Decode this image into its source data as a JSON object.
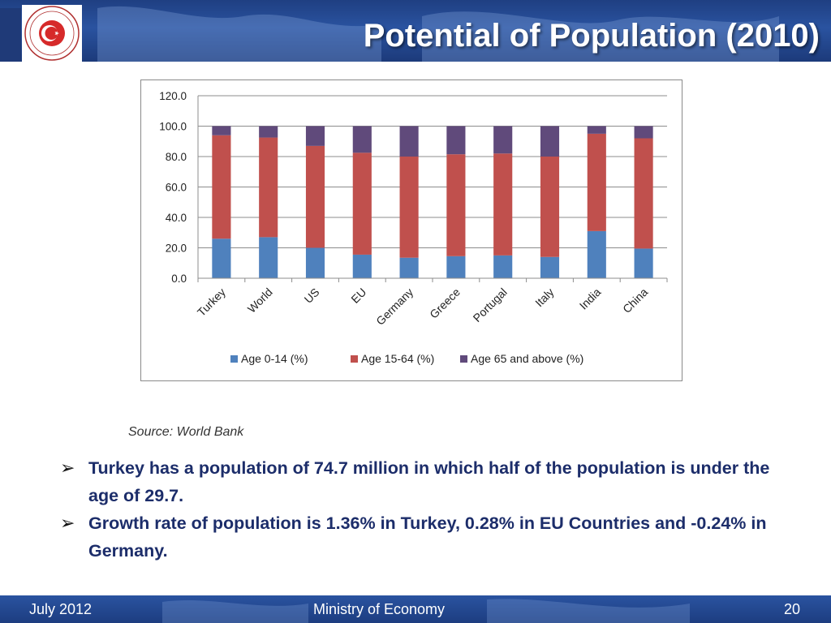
{
  "slide": {
    "title": "Potential of Population (2010)",
    "source": "Source: World Bank",
    "logo_text": "REPUBLIC OF TURKEY MINISTRY OF ECONOMY"
  },
  "bullets": [
    "Turkey has a population of 74.7 million in which half of the population is under the age of 29.7.",
    "Growth rate of population is 1.36% in Turkey, 0.28% in EU Countries and -0.24% in Germany."
  ],
  "footer": {
    "date": "July 2012",
    "org": "Ministry of Economy",
    "page": "20"
  },
  "colors": {
    "header_blue": "#2a53a0",
    "bullet_text": "#1c2d6a"
  },
  "chart_data": {
    "type": "bar",
    "stacked": true,
    "categories": [
      "Turkey",
      "World",
      "US",
      "EU",
      "Germany",
      "Greece",
      "Portugal",
      "Italy",
      "India",
      "China"
    ],
    "series": [
      {
        "name": "Age 0-14  (%)",
        "color": "#4f81bd",
        "values": [
          26,
          27,
          20,
          15.5,
          13.5,
          14.5,
          15,
          14,
          31,
          19.5
        ]
      },
      {
        "name": "Age 15-64  (%)",
        "color": "#c0504d",
        "values": [
          68,
          65.5,
          67,
          67,
          66.5,
          67,
          67,
          66,
          64,
          72.5
        ]
      },
      {
        "name": "Age 65 and above (%)",
        "color": "#604a7b",
        "values": [
          6,
          7.5,
          13,
          17.5,
          20,
          18.5,
          18,
          20,
          5,
          8
        ]
      }
    ],
    "yticks": [
      "0.0",
      "20.0",
      "40.0",
      "60.0",
      "80.0",
      "100.0",
      "120.0"
    ],
    "ylim": [
      0,
      120
    ],
    "grid": true,
    "legend": "bottom"
  }
}
